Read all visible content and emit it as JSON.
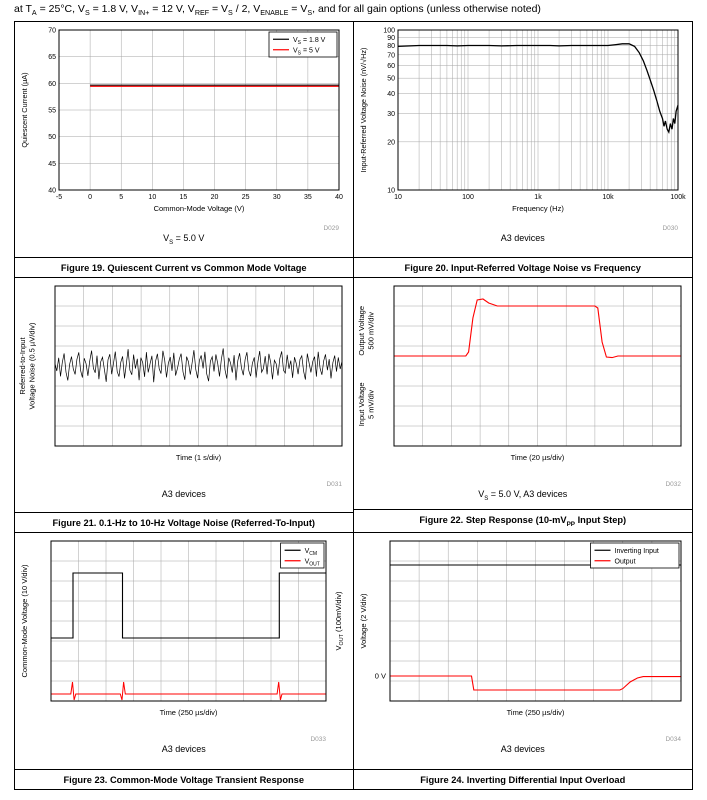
{
  "page": {
    "header": "at T~A~ = 25°C, V~S~ = 1.8 V, V~IN+~ = 12 V, V~REF~ = V~S~ / 2, V~ENABLE~ = V~S~, and for all gain options (unless otherwise noted)"
  },
  "chart_data": [
    {
      "type": "line",
      "title": "Figure 19. Quiescent Current vs Common Mode Voltage",
      "caption": "V~S~ = 5.0 V",
      "d_code": "D029",
      "xlabel": "Common-Mode Voltage (V)",
      "ylabel": "Quiescent Current (µA)",
      "xlim": [
        -5,
        40
      ],
      "ylim": [
        40,
        70
      ],
      "x_ticks": [
        -5,
        0,
        5,
        10,
        15,
        20,
        25,
        30,
        35,
        40
      ],
      "y_ticks": [
        40,
        45,
        50,
        55,
        60,
        65,
        70
      ],
      "legend": [
        {
          "label": "V~S~ = 1.8 V",
          "color": "#000000"
        },
        {
          "label": "V~S~ = 5 V",
          "color": "#ff0000"
        }
      ],
      "series": [
        {
          "name": "V~S~ = 1.8 V",
          "color": "#000000",
          "width": 1.2,
          "points": [
            [
              0,
              59.65
            ],
            [
              40,
              59.65
            ]
          ]
        },
        {
          "name": "V~S~ = 5 V",
          "color": "#ff0000",
          "width": 1.2,
          "points": [
            [
              0,
              59.45
            ],
            [
              40,
              59.45
            ]
          ]
        }
      ]
    },
    {
      "type": "line",
      "title": "Figure 20. Input-Referred Voltage Noise vs Frequency",
      "caption": "A3 devices",
      "d_code": "D030",
      "xlabel": "Frequency (Hz)",
      "ylabel": "Input-Referred Voltage Noise (nV/√Hz)",
      "x_log": true,
      "y_log": true,
      "xlim": [
        10,
        100000
      ],
      "ylim": [
        10,
        100
      ],
      "x_ticks": [
        [
          10,
          "10"
        ],
        [
          100,
          "100"
        ],
        [
          1000,
          "1k"
        ],
        [
          10000,
          "10k"
        ],
        [
          100000,
          "100k"
        ]
      ],
      "x_minor": [
        20,
        30,
        40,
        50,
        60,
        70,
        80,
        90,
        200,
        300,
        400,
        500,
        600,
        700,
        800,
        900,
        2000,
        3000,
        4000,
        5000,
        6000,
        7000,
        8000,
        9000,
        20000,
        30000,
        40000,
        50000,
        60000,
        70000,
        80000,
        90000
      ],
      "y_ticks": [
        10,
        20,
        30,
        40,
        50,
        60,
        70,
        80,
        90,
        100
      ],
      "series": [
        {
          "name": "input-referred noise",
          "color": "#000000",
          "width": 1.3,
          "points": [
            [
              10,
              79
            ],
            [
              15,
              79.5
            ],
            [
              20,
              80
            ],
            [
              30,
              80
            ],
            [
              50,
              80
            ],
            [
              70,
              79.5
            ],
            [
              100,
              80
            ],
            [
              150,
              80
            ],
            [
              200,
              80
            ],
            [
              300,
              79.5
            ],
            [
              500,
              80
            ],
            [
              700,
              80
            ],
            [
              1000,
              80
            ],
            [
              1500,
              80
            ],
            [
              2000,
              79.5
            ],
            [
              3000,
              80
            ],
            [
              5000,
              80
            ],
            [
              7000,
              80
            ],
            [
              10000,
              80
            ],
            [
              13000,
              81
            ],
            [
              16000,
              82
            ],
            [
              20000,
              82
            ],
            [
              24000,
              79
            ],
            [
              28000,
              72
            ],
            [
              32000,
              64
            ],
            [
              36000,
              56
            ],
            [
              40000,
              49
            ],
            [
              45000,
              42
            ],
            [
              50000,
              36
            ],
            [
              55000,
              31
            ],
            [
              60000,
              28
            ],
            [
              63000,
              25
            ],
            [
              66000,
              27
            ],
            [
              70000,
              24
            ],
            [
              74000,
              23
            ],
            [
              78000,
              26
            ],
            [
              82000,
              24
            ],
            [
              86000,
              28
            ],
            [
              90000,
              26
            ],
            [
              94000,
              31
            ],
            [
              100000,
              34
            ]
          ]
        }
      ]
    },
    {
      "type": "scope",
      "title": "Figure 21. 0.1-Hz to 10-Hz Voltage Noise (Referred-To-Input)",
      "caption": "A3 devices",
      "d_code": "D031",
      "xlabel": "Time (1 s/div)",
      "ylabels": [
        {
          "lines": [
            "Referred-to-Input",
            "Voltage Noise (0.5 µV/div)"
          ],
          "pos": 0.5
        }
      ],
      "x_divs": 10,
      "y_divs": 8,
      "series": [
        {
          "name": "noise trace",
          "color": "#000000",
          "width": 0.7,
          "center": 4,
          "offsets": [
            0.12,
            -0.25,
            0.41,
            -0.52,
            0.18,
            0.63,
            -0.31,
            -0.72,
            0.08,
            0.47,
            -0.15,
            -0.42,
            0.33,
            0.68,
            -0.22,
            -0.58,
            0.39,
            0.11,
            -0.49,
            0.24,
            0.77,
            -0.12,
            -0.34,
            0.52,
            -0.66,
            0.21,
            0.44,
            -0.18,
            -0.79,
            0.31,
            0.59,
            -0.41,
            0.14,
            0.72,
            -0.28,
            -0.53,
            0.19,
            0.48,
            -0.62,
            0.09,
            0.84,
            -0.21,
            -0.44,
            0.57,
            -0.13,
            0.36,
            -0.71,
            0.42,
            0.17,
            -0.54,
            0.69,
            -0.32,
            0.12,
            0.51,
            -0.81,
            0.23,
            0.61,
            -0.14,
            -0.38,
            0.76,
            0.29,
            -0.57,
            0.13,
            0.45,
            -0.24,
            0.66,
            -0.48,
            -0.11,
            0.34,
            0.62,
            -0.29,
            -0.69,
            0.47,
            0.22,
            -0.43,
            0.15,
            0.79,
            -0.18,
            -0.61,
            0.28,
            0.53,
            -0.12,
            0.71,
            -0.39,
            -0.76,
            0.24,
            0.46,
            -0.27,
            0.58,
            0.13,
            -0.52,
            0.35,
            0.88,
            -0.19,
            -0.63,
            0.41,
            0.16,
            -0.33,
            0.54,
            -0.72,
            0.26,
            0.64,
            -0.11,
            -0.46,
            0.32,
            0.69,
            -0.23,
            -0.51,
            0.14,
            0.43,
            -0.58,
            0.21,
            0.75,
            -0.31,
            -0.13,
            0.49,
            -0.42,
            0.61,
            0.18,
            -0.67,
            0.29,
            0.11,
            -0.48,
            0.37,
            0.73,
            -0.22,
            -0.35,
            0.56,
            -0.14,
            0.27,
            -0.59,
            0.44,
            0.12,
            -0.41,
            0.33,
            0.51,
            -0.26,
            -0.68,
            0.62,
            0.15,
            -0.32,
            0.23,
            0.47,
            -0.53,
            0.71,
            -0.12,
            -0.44,
            0.26,
            0.58,
            -0.21,
            0.34,
            -0.62,
            0.17,
            0.52,
            -0.28,
            0.43,
            -0.15,
            0.24
          ]
        }
      ]
    },
    {
      "type": "scope",
      "title": "Figure 22. Step Response (10-mV~PP~ Input Step)",
      "caption": "V~S~ = 5.0 V, A3 devices",
      "d_code": "D032",
      "xlabel": "Time (20 µs/div)",
      "ylabels": [
        {
          "lines": [
            "Output Voltage",
            "500 mV/div"
          ],
          "pos": 0.28
        },
        {
          "lines": [
            "Input Voltage",
            "5 mV/div"
          ],
          "pos": 0.74
        }
      ],
      "x_divs": 10,
      "y_divs": 8,
      "series": [
        {
          "name": "output",
          "color": "#ff0000",
          "width": 1.1,
          "points": [
            [
              0,
              4.5
            ],
            [
              2.5,
              4.5
            ],
            [
              2.6,
              4.7
            ],
            [
              2.75,
              6.4
            ],
            [
              2.9,
              7.3
            ],
            [
              3.1,
              7.35
            ],
            [
              3.3,
              7.15
            ],
            [
              3.6,
              7.0
            ],
            [
              4.0,
              7.0
            ],
            [
              6.9,
              7.0
            ],
            [
              7.0,
              7.0
            ],
            [
              7.1,
              6.9
            ],
            [
              7.25,
              5.2
            ],
            [
              7.4,
              4.45
            ],
            [
              7.6,
              4.42
            ],
            [
              7.8,
              4.5
            ],
            [
              10,
              4.5
            ]
          ]
        }
      ]
    },
    {
      "type": "scope",
      "title": "Figure 23. Common-Mode Voltage Transient Response",
      "caption": "A3 devices",
      "d_code": "D033",
      "xlabel": "Time (250 µs/div)",
      "ylabels": [
        {
          "lines": [
            "Common-Mode Voltage (10 V/div)"
          ],
          "pos": 0.5
        }
      ],
      "ylabel_right": "V~OUT~ (100mV/div)",
      "legend": [
        {
          "label": "V~CM~",
          "color": "#000000"
        },
        {
          "label": "V~OUT~",
          "color": "#ff0000"
        }
      ],
      "x_divs": 10,
      "y_divs": 8,
      "series": [
        {
          "name": "VCM",
          "color": "#000000",
          "width": 1.1,
          "points": [
            [
              0,
              3.15
            ],
            [
              0.8,
              3.15
            ],
            [
              0.8,
              6.4
            ],
            [
              2.6,
              6.4
            ],
            [
              2.6,
              3.15
            ],
            [
              8.3,
              3.15
            ],
            [
              8.3,
              6.4
            ],
            [
              10,
              6.4
            ]
          ]
        },
        {
          "name": "VOUT",
          "color": "#ff0000",
          "width": 1.0,
          "points": [
            [
              0,
              0.35
            ],
            [
              0.72,
              0.35
            ],
            [
              0.78,
              0.95
            ],
            [
              0.84,
              0.05
            ],
            [
              0.9,
              0.35
            ],
            [
              2.52,
              0.35
            ],
            [
              2.58,
              0.05
            ],
            [
              2.64,
              0.95
            ],
            [
              2.7,
              0.35
            ],
            [
              8.22,
              0.35
            ],
            [
              8.28,
              0.95
            ],
            [
              8.34,
              0.05
            ],
            [
              8.4,
              0.35
            ],
            [
              10,
              0.35
            ]
          ]
        }
      ]
    },
    {
      "type": "scope",
      "title": "Figure 24. Inverting Differential Input Overload",
      "caption": "A3 devices",
      "d_code": "D034",
      "xlabel": "Time (250 µs/div)",
      "ylabels": [
        {
          "lines": [
            "Voltage (2 V/div)"
          ],
          "pos": 0.5
        }
      ],
      "legend": [
        {
          "label": "Inverting Input",
          "color": "#000000"
        },
        {
          "label": "Output",
          "color": "#ff0000"
        }
      ],
      "annotations": [
        {
          "text": "0 V",
          "y_div": 1.25
        }
      ],
      "x_divs": 10,
      "y_divs": 8,
      "series": [
        {
          "name": "Inverting Input",
          "color": "#000000",
          "width": 1.1,
          "points": [
            [
              0,
              6.8
            ],
            [
              10,
              6.8
            ]
          ]
        },
        {
          "name": "Output",
          "color": "#ff0000",
          "width": 1.1,
          "points": [
            [
              0,
              1.25
            ],
            [
              2.8,
              1.25
            ],
            [
              2.88,
              0.55
            ],
            [
              7.9,
              0.55
            ],
            [
              8.0,
              0.62
            ],
            [
              8.25,
              0.95
            ],
            [
              8.5,
              1.15
            ],
            [
              8.7,
              1.22
            ],
            [
              10,
              1.22
            ]
          ]
        }
      ]
    }
  ]
}
